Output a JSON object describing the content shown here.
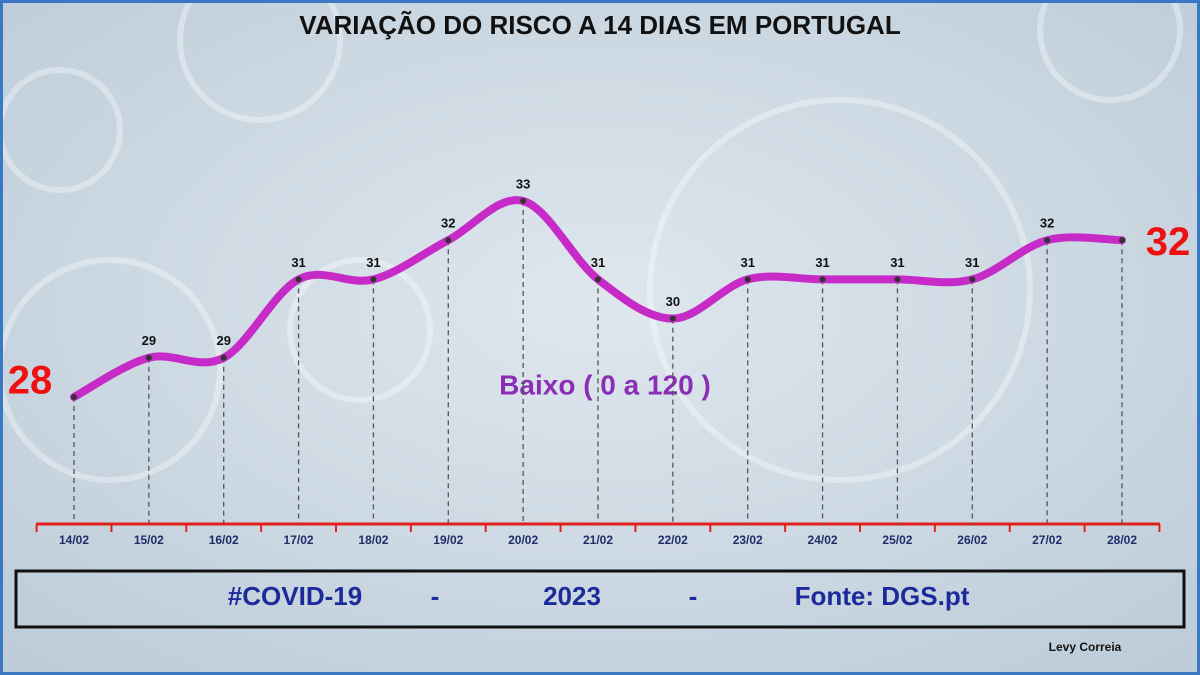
{
  "chart_data": {
    "type": "line",
    "title": "VARIAÇÃO DO RISCO A 14 DIAS EM PORTUGAL",
    "annotation": "Baixo  ( 0 a 120 )",
    "categories": [
      "14/02",
      "15/02",
      "16/02",
      "17/02",
      "18/02",
      "19/02",
      "20/02",
      "21/02",
      "22/02",
      "23/02",
      "24/02",
      "25/02",
      "26/02",
      "27/02",
      "28/02"
    ],
    "series": [
      {
        "color": "#c72bc7",
        "values": [
          28,
          29,
          29,
          31,
          31,
          32,
          33,
          31,
          30,
          31,
          31,
          31,
          31,
          32,
          32
        ]
      }
    ]
  },
  "footer": {
    "items": [
      "#COVID-19",
      "-",
      "2023",
      "-",
      "Fonte: DGS.pt"
    ],
    "author": "Levy Correia"
  }
}
